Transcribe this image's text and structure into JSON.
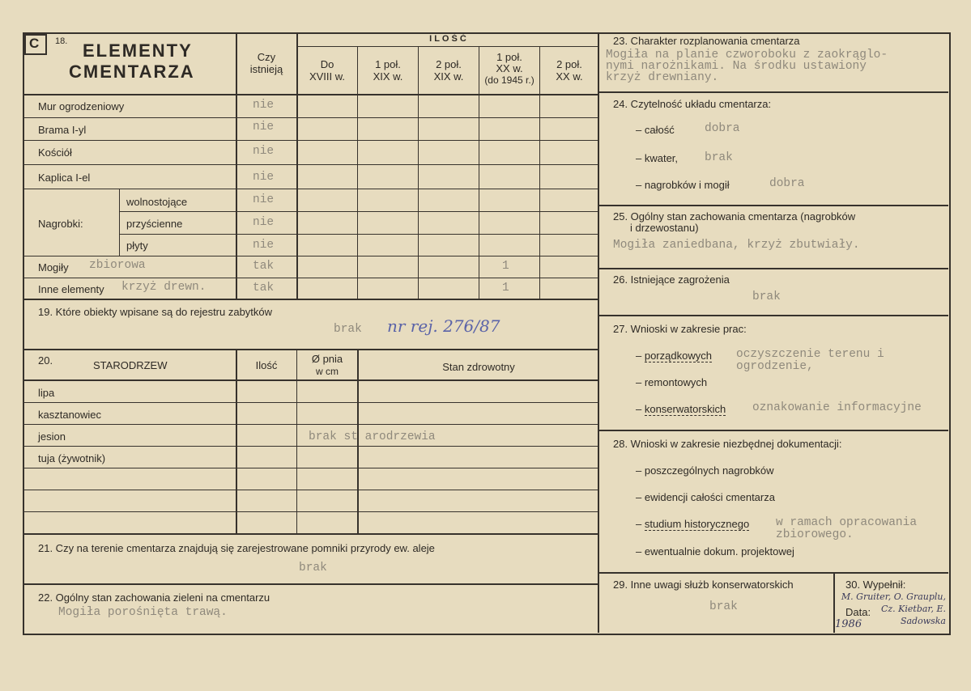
{
  "section18": {
    "letter": "C",
    "number": "18.",
    "title_line1": "ELEMENTY",
    "title_line2": "CMENTARZA",
    "col_exists": [
      "Czy",
      "istnieją"
    ],
    "ilosc_label": "I L O Ś Ć",
    "periods": [
      [
        "Do",
        "XVIII w."
      ],
      [
        "1 poł.",
        "XIX w."
      ],
      [
        "2 poł.",
        "XIX w."
      ],
      [
        "1 poł.",
        "XX w.",
        "(do 1945 r.)"
      ],
      [
        "2 poł.",
        "XX w."
      ]
    ],
    "nagrobki_label": "Nagrobki:",
    "rows": [
      {
        "label": "Mur ogrodzeniowy",
        "exists": "nie",
        "extra": "",
        "count_1945": ""
      },
      {
        "label": "Brama I-yl",
        "exists": "nie",
        "extra": "",
        "count_1945": ""
      },
      {
        "label": "Kościół",
        "exists": "nie",
        "extra": "",
        "count_1945": ""
      },
      {
        "label": "Kaplica I-el",
        "exists": "nie",
        "extra": "",
        "count_1945": ""
      },
      {
        "label": "wolnostojące",
        "exists": "nie",
        "extra": "",
        "count_1945": ""
      },
      {
        "label": "przyścienne",
        "exists": "nie",
        "extra": "",
        "count_1945": ""
      },
      {
        "label": "płyty",
        "exists": "nie",
        "extra": "",
        "count_1945": ""
      },
      {
        "label": "Mogiły",
        "exists": "tak",
        "extra": "zbiorowa",
        "count_1945": "1"
      },
      {
        "label": "Inne elementy",
        "exists": "tak",
        "extra": "krzyż drewn.",
        "count_1945": "1"
      }
    ]
  },
  "section19": {
    "label": "19. Które obiekty wpisane są do rejestru zabytków",
    "typed": "brak",
    "handwritten": "nr rej. 276/87"
  },
  "section20": {
    "number": "20.",
    "title": "STARODRZEW",
    "col_count": "Ilość",
    "col_diameter": [
      "Ø pnia",
      "w cm"
    ],
    "col_health": "Stan zdrowotny",
    "trees": [
      "lipa",
      "kasztanowiec",
      "jesion",
      "tuja (żywotnik)"
    ],
    "typed": "brak st arodrzewia"
  },
  "section21": {
    "label": "21. Czy na terenie cmentarza znajdują się zarejestrowane pomniki przyrody ew. aleje",
    "typed": "brak"
  },
  "section22": {
    "label": "22. Ogólny stan zachowania zieleni na cmentarzu",
    "typed": "Mogiła porośnięta trawą."
  },
  "section23": {
    "label": "23. Charakter rozplanowania cmentarza",
    "typed": [
      "Mogiła na planie czworoboku z zaokrąglo-",
      "nymi narożnikami. Na środku ustawiony",
      "krzyż drewniany."
    ]
  },
  "section24": {
    "label": "24. Czytelność układu cmentarza:",
    "items": [
      {
        "label": "– całość",
        "value": "dobra"
      },
      {
        "label": "– kwater,",
        "value": "brak"
      },
      {
        "label": "– nagrobków i mogił",
        "value": "dobra"
      }
    ]
  },
  "section25": {
    "label": [
      "25. Ogólny stan zachowania cmentarza (nagrobków",
      "i drzewostanu)"
    ],
    "typed": "Mogiła zaniedbana, krzyż zbutwiały."
  },
  "section26": {
    "label": "26. Istniejące zagrożenia",
    "typed": "brak"
  },
  "section27": {
    "label": "27. Wnioski w zakresie prac:",
    "items": [
      {
        "label": "porządkowych",
        "value": [
          "oczyszczenie terenu i",
          "ogrodzenie,"
        ]
      },
      {
        "label": "remontowych",
        "value": []
      },
      {
        "label": "konserwatorskich",
        "value": [
          "oznakowanie informacyjne"
        ]
      }
    ]
  },
  "section28": {
    "label": "28. Wnioski w zakresie niezbędnej dokumentacji:",
    "items": [
      {
        "label": "poszczególnych nagrobków",
        "value": []
      },
      {
        "label": "ewidencji całości cmentarza",
        "value": []
      },
      {
        "label": "studium historycznego",
        "value": [
          "w ramach opracowania",
          "zbiorowego."
        ]
      },
      {
        "label": "ewentualnie dokum. projektowej",
        "value": []
      }
    ]
  },
  "section29": {
    "label": "29. Inne uwagi służb konserwatorskich",
    "typed": "brak"
  },
  "section30": {
    "label": "30. Wypełnił:",
    "date_label": "Data:",
    "names": "M. Gruiter, O. Grauplu, Cz. Kietbar, E. Sadowska",
    "year": "1986"
  }
}
